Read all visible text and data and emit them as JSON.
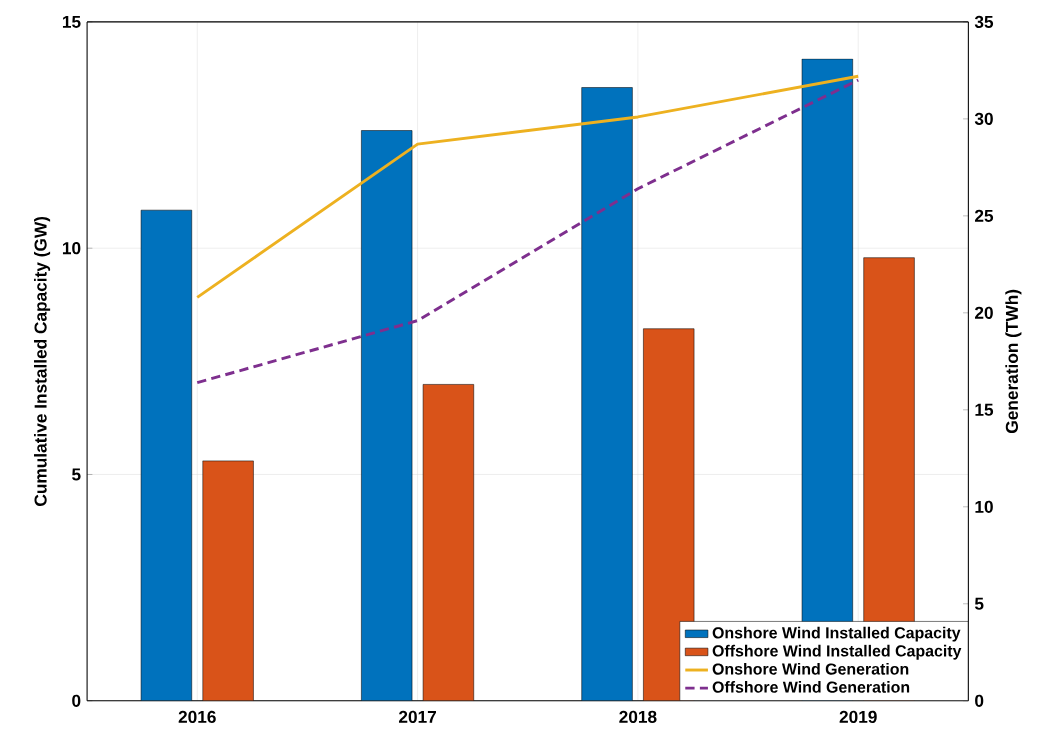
{
  "chart_data": {
    "type": "bar",
    "categories": [
      "2016",
      "2017",
      "2018",
      "2019"
    ],
    "ylabel": "Cumulative Installed Capacity (GW)",
    "y2label": "Generation (TWh)",
    "ylim": [
      0,
      15
    ],
    "yticks": [
      0,
      5,
      10,
      15
    ],
    "y2lim": [
      0,
      35
    ],
    "y2ticks": [
      0,
      5,
      10,
      15,
      20,
      25,
      30,
      35
    ],
    "grid": true,
    "legend": "bottom right",
    "series": [
      {
        "name": "Onshore Wind Installed Capacity",
        "color": "#0072bd",
        "values": [
          10.84,
          12.6,
          13.55,
          14.18
        ]
      },
      {
        "name": "Offshore Wind Installed Capacity",
        "color": "#d95319",
        "values": [
          5.3,
          6.99,
          8.22,
          9.79
        ]
      },
      {
        "name": "Onshore Wind Generation",
        "type": "line",
        "axis": "y2",
        "color": "#edb120",
        "line_style": "solid",
        "values": [
          20.8,
          28.7,
          30.1,
          32.2
        ]
      },
      {
        "name": "Offshore Wind Generation",
        "type": "line",
        "axis": "y2",
        "color": "#7e2f8e",
        "line_style": "dashed",
        "values": [
          16.4,
          19.6,
          26.4,
          32.0
        ]
      }
    ]
  }
}
